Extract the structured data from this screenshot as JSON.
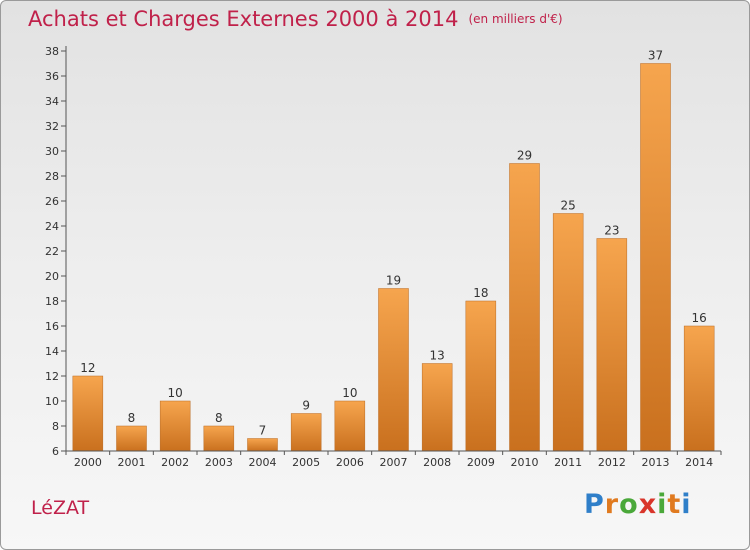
{
  "title": "Achats et Charges Externes 2000 à 2014",
  "unit_label": "(en milliers d'€)",
  "commune": "LéZAT",
  "logo_text": "Proxiti",
  "colors": {
    "title": "#c0214a",
    "bar_light": "#f6a54e",
    "bar_dark": "#c9701e",
    "axis": "#444444"
  },
  "chart_data": {
    "type": "bar",
    "title": "Achats et Charges Externes 2000 à 2014",
    "xlabel": "",
    "ylabel": "",
    "categories": [
      "2000",
      "2001",
      "2002",
      "2003",
      "2004",
      "2005",
      "2006",
      "2007",
      "2008",
      "2009",
      "2010",
      "2011",
      "2012",
      "2013",
      "2014"
    ],
    "values": [
      12,
      8,
      10,
      8,
      7,
      9,
      10,
      19,
      13,
      18,
      29,
      25,
      23,
      37,
      16
    ],
    "ylim": [
      6,
      38
    ],
    "yticks": [
      6,
      8,
      10,
      12,
      14,
      16,
      18,
      20,
      22,
      24,
      26,
      28,
      30,
      32,
      34,
      36,
      38
    ],
    "grid": false,
    "data_labels": true
  }
}
